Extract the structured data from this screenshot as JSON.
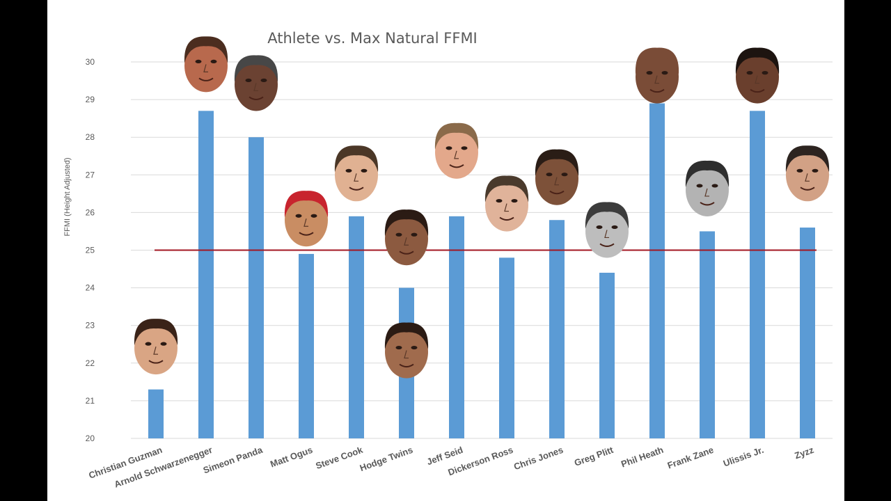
{
  "chart_data": {
    "type": "bar",
    "title": "Athlete vs. Max Natural FFMI",
    "ylabel": "FFMI (Height Adjusted)",
    "xlabel": "",
    "ylim": [
      20,
      30
    ],
    "yticks": [
      20,
      21,
      22,
      23,
      24,
      25,
      26,
      27,
      28,
      29,
      30
    ],
    "grid": true,
    "categories": [
      "Christian Guzman",
      "Arnold Schwarzenegger",
      "Simeon Panda",
      "Matt Ogus",
      "Steve Cook",
      "Hodge Twins",
      "Jeff Seid",
      "Dickerson Ross",
      "Chris Jones",
      "Greg Plitt",
      "Phil Heath",
      "Frank Zane",
      "Ulissis Jr.",
      "Zyzz"
    ],
    "values": [
      21.3,
      28.7,
      28.0,
      24.9,
      25.9,
      24.0,
      25.9,
      24.8,
      25.8,
      24.4,
      28.9,
      25.5,
      28.7,
      25.6
    ],
    "reference_line": {
      "value": 25,
      "color": "#a31621"
    },
    "bar_color": "#5b9bd5",
    "faces": [
      {
        "category": "Christian Guzman",
        "value": 22.4,
        "skin": "#d9a584",
        "hair": "#3a2318"
      },
      {
        "category": "Arnold Schwarzenegger",
        "value": 29.9,
        "skin": "#b8694d",
        "hair": "#4b2d1f"
      },
      {
        "category": "Simeon Panda",
        "value": 29.4,
        "skin": "#6b4232",
        "hair": "#474747"
      },
      {
        "category": "Matt Ogus",
        "value": 25.8,
        "skin": "#c98d63",
        "hair": "#c8242e"
      },
      {
        "category": "Steve Cook",
        "value": 27.0,
        "skin": "#e0b192",
        "hair": "#4b3727"
      },
      {
        "category": "Hodge Twins",
        "value": 25.3,
        "skin": "#8c5a40",
        "hair": "#2b1b14"
      },
      {
        "category": "Hodge Twins",
        "value": 22.3,
        "skin": "#a06b4d",
        "hair": "#2b1b14"
      },
      {
        "category": "Jeff Seid",
        "value": 27.6,
        "skin": "#e3a88b",
        "hair": "#8a6a4a"
      },
      {
        "category": "Dickerson Ross",
        "value": 26.2,
        "skin": "#e0b39a",
        "hair": "#4a3a2c"
      },
      {
        "category": "Chris Jones",
        "value": 26.9,
        "skin": "#7d5139",
        "hair": "#2a1d16"
      },
      {
        "category": "Greg Plitt",
        "value": 25.5,
        "skin": "#bdbdbd",
        "hair": "#3c3c3c"
      },
      {
        "category": "Phil Heath",
        "value": 29.6,
        "skin": "#7a4c37",
        "hair": "#7a4c37"
      },
      {
        "category": "Frank Zane",
        "value": 26.6,
        "skin": "#b3b3b3",
        "hair": "#2e2e2e"
      },
      {
        "category": "Ulissis Jr.",
        "value": 29.6,
        "skin": "#6a3f2d",
        "hair": "#1d1410"
      },
      {
        "category": "Zyzz",
        "value": 27.0,
        "skin": "#d2a185",
        "hair": "#2d2420"
      }
    ]
  }
}
